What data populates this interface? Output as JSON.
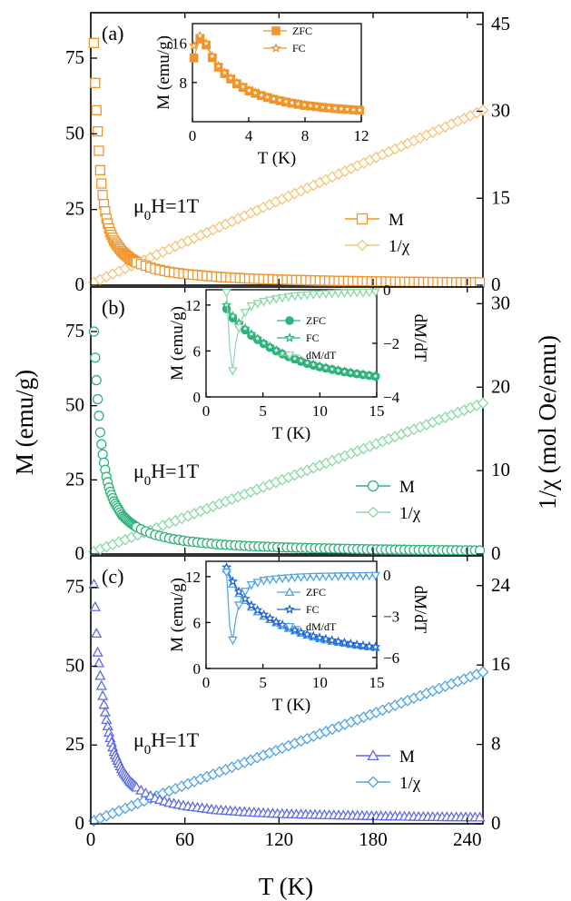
{
  "figure": {
    "left_axis_label": "M (emu/g)",
    "right_axis_label": "1/χ (mol Oe/emu)",
    "x_axis_label": "T (K)",
    "x_ticks": [
      "0",
      "60",
      "120",
      "180",
      "240"
    ]
  },
  "colors": {
    "a": "#F0952A",
    "a_light": "#F7C378",
    "b": "#2EB37A",
    "b_light": "#8AD9A6",
    "c": "#5E6BE6",
    "c_light": "#4FA3E8"
  },
  "chart_data": [
    {
      "type": "scatter",
      "panel": "(a)",
      "annotation": "μ0H=1T",
      "x_range": [
        0,
        250
      ],
      "left_axis": {
        "range": [
          0,
          90
        ],
        "ticks": [
          "0",
          "25",
          "50",
          "75"
        ]
      },
      "right_axis": {
        "range": [
          0,
          47
        ],
        "ticks": [
          "0",
          "15",
          "30",
          "45"
        ]
      },
      "series": [
        {
          "name": "M",
          "marker": "square",
          "axis": "left",
          "x": [
            2,
            3,
            4,
            5,
            6,
            7,
            8,
            10,
            12,
            15,
            20,
            25,
            30,
            40,
            50,
            60,
            80,
            100,
            120,
            150,
            180,
            210,
            240,
            250
          ],
          "y": [
            80,
            63.5,
            54,
            46,
            38,
            32.5,
            28,
            22,
            18,
            14.5,
            11,
            8.8,
            7.3,
            5.5,
            4.4,
            3.7,
            2.8,
            2.2,
            1.85,
            1.5,
            1.25,
            1.08,
            0.95,
            0.9
          ]
        },
        {
          "name": "1/χ",
          "marker": "diamond",
          "axis": "right",
          "x": [
            2,
            50,
            100,
            150,
            200,
            250
          ],
          "y": [
            0.5,
            6.2,
            12.2,
            18.2,
            24.2,
            30.2
          ]
        }
      ],
      "inset": {
        "xlabel": "T (K)",
        "ylabel": "M (emu/g)",
        "x_range": [
          0,
          12
        ],
        "x_ticks": [
          "0",
          "4",
          "8",
          "12"
        ],
        "y_range": [
          0,
          20
        ],
        "y_ticks": [
          "8",
          "16"
        ],
        "series": [
          {
            "name": "ZFC",
            "marker": "filled-square",
            "x": [
              0.1,
              0.3,
              0.5,
              0.7,
              1,
              1.5,
              2,
              3,
              4,
              5,
              6,
              7,
              8,
              9,
              10,
              11,
              12
            ],
            "y": [
              13,
              15,
              16.8,
              17.2,
              15.5,
              12.5,
              10.5,
              8,
              6.3,
              5.2,
              4.4,
              3.8,
              3.3,
              3,
              2.7,
              2.5,
              2.3
            ]
          },
          {
            "name": "FC",
            "marker": "star",
            "x": [
              0.1,
              0.3,
              0.5,
              0.7,
              1,
              1.5,
              2,
              3,
              4,
              5,
              6,
              7,
              8,
              9,
              10,
              11,
              12
            ],
            "y": [
              15.5,
              16.5,
              17.5,
              17.6,
              15.8,
              12.8,
              10.7,
              8.2,
              6.4,
              5.3,
              4.5,
              3.9,
              3.4,
              3.05,
              2.75,
              2.55,
              2.35
            ]
          }
        ]
      }
    },
    {
      "type": "scatter",
      "panel": "(b)",
      "annotation": "μ0H=1T",
      "x_range": [
        0,
        250
      ],
      "left_axis": {
        "range": [
          0,
          90
        ],
        "ticks": [
          "0",
          "25",
          "50",
          "75"
        ]
      },
      "right_axis": {
        "range": [
          0,
          32
        ],
        "ticks": [
          "0",
          "10",
          "20",
          "30"
        ]
      },
      "series": [
        {
          "name": "M",
          "marker": "circle",
          "axis": "left",
          "x": [
            2,
            3,
            4,
            5,
            6,
            7,
            8,
            10,
            12,
            15,
            20,
            25,
            30,
            40,
            50,
            60,
            80,
            100,
            120,
            150,
            180,
            210,
            240,
            250
          ],
          "y": [
            75,
            64,
            55,
            48,
            41,
            36,
            32,
            26,
            21.5,
            17.5,
            13,
            10.6,
            8.8,
            6.6,
            5.3,
            4.4,
            3.3,
            2.7,
            2.3,
            1.9,
            1.6,
            1.4,
            1.25,
            1.2
          ]
        },
        {
          "name": "1/χ",
          "marker": "diamond",
          "axis": "right",
          "x": [
            2,
            50,
            100,
            150,
            200,
            250
          ],
          "y": [
            0.3,
            3.7,
            7.3,
            10.9,
            14.5,
            18.1
          ]
        }
      ],
      "inset": {
        "xlabel": "T (K)",
        "ylabel": "M (emu/g)",
        "y2label": "dM/dT",
        "x_range": [
          0,
          15
        ],
        "x_ticks": [
          "0",
          "5",
          "10",
          "15"
        ],
        "y_range": [
          0,
          14
        ],
        "y_ticks": [
          "0",
          "6",
          "12"
        ],
        "y2_range": [
          -4,
          0
        ],
        "y2_ticks": [
          "0",
          "−2",
          "−4"
        ],
        "series": [
          {
            "name": "ZFC",
            "marker": "filled-circle",
            "x": [
              1.8,
              2,
              2.5,
              3,
              4,
              5,
              6,
              7,
              8,
              9,
              10,
              11,
              12,
              13,
              14,
              15
            ],
            "y": [
              11.5,
              11,
              10,
              9.3,
              8,
              7,
              6.1,
              5.4,
              4.8,
              4.3,
              3.9,
              3.6,
              3.3,
              3.05,
              2.85,
              2.65
            ]
          },
          {
            "name": "FC",
            "marker": "star",
            "x": [
              1.8,
              2,
              2.5,
              3,
              4,
              5,
              6,
              7,
              8,
              9,
              10,
              11,
              12,
              13,
              14,
              15
            ],
            "y": [
              12,
              11.3,
              10.2,
              9.5,
              8.2,
              7.1,
              6.2,
              5.5,
              4.9,
              4.4,
              4,
              3.65,
              3.35,
              3.1,
              2.9,
              2.7
            ]
          },
          {
            "name": "dM/dT",
            "marker": "down-triangle",
            "axis": "right",
            "x": [
              1.8,
              2,
              2.2,
              2.5,
              3,
              3.5,
              4,
              5,
              6,
              7,
              8,
              10,
              12,
              14,
              15
            ],
            "y": [
              -0.1,
              -1.2,
              -3.8,
              -2.2,
              -1.2,
              -0.8,
              -0.6,
              -0.45,
              -0.35,
              -0.28,
              -0.22,
              -0.16,
              -0.12,
              -0.1,
              -0.09
            ]
          }
        ]
      }
    },
    {
      "type": "scatter",
      "panel": "(c)",
      "annotation": "μ0H=1T",
      "x_range": [
        0,
        250
      ],
      "left_axis": {
        "range": [
          0,
          85
        ],
        "ticks": [
          "0",
          "25",
          "50",
          "75"
        ]
      },
      "right_axis": {
        "range": [
          0,
          27
        ],
        "ticks": [
          "0",
          "8",
          "16",
          "24"
        ]
      },
      "series": [
        {
          "name": "M",
          "marker": "triangle",
          "axis": "left",
          "x": [
            2,
            3,
            4,
            5,
            6,
            7,
            8,
            10,
            12,
            15,
            20,
            25,
            30,
            40,
            50,
            60,
            80,
            100,
            120,
            150,
            180,
            210,
            240,
            250
          ],
          "y": [
            76,
            67,
            56,
            52,
            47,
            43,
            39,
            33,
            28,
            22.5,
            17,
            13.5,
            11.2,
            8.3,
            6.7,
            5.7,
            4.4,
            3.7,
            3.2,
            2.8,
            2.5,
            2.25,
            2.1,
            2.05
          ]
        },
        {
          "name": "1/χ",
          "marker": "diamond",
          "axis": "right",
          "x": [
            2,
            50,
            100,
            150,
            200,
            250
          ],
          "y": [
            0.3,
            3.3,
            6.3,
            9.3,
            12.3,
            15.3
          ]
        }
      ],
      "inset": {
        "xlabel": "T (K)",
        "ylabel": "M (emu/g)",
        "y2label": "dM/dT",
        "x_range": [
          0,
          15
        ],
        "x_ticks": [
          "0",
          "5",
          "10",
          "15"
        ],
        "y_range": [
          0,
          14
        ],
        "y_ticks": [
          "0",
          "6",
          "12"
        ],
        "y2_range": [
          -6.8,
          1
        ],
        "y2_ticks": [
          "0",
          "−3",
          "−6"
        ],
        "series": [
          {
            "name": "ZFC",
            "marker": "triangle",
            "x": [
              1.8,
              2,
              2.5,
              3,
              4,
              5,
              6,
              7,
              8,
              9,
              10,
              11,
              12,
              13,
              14,
              15
            ],
            "y": [
              13,
              12,
              10.6,
              9.6,
              8,
              6.9,
              6.1,
              5.4,
              4.8,
              4.3,
              3.9,
              3.6,
              3.35,
              3.1,
              2.9,
              2.75
            ]
          },
          {
            "name": "FC",
            "marker": "star",
            "x": [
              1.8,
              2,
              2.5,
              3,
              4,
              5,
              6,
              7,
              8,
              9,
              10,
              11,
              12,
              13,
              14,
              15
            ],
            "y": [
              13.2,
              12.4,
              10.9,
              9.8,
              8.2,
              7.1,
              6.2,
              5.5,
              4.9,
              4.4,
              4,
              3.7,
              3.4,
              3.15,
              2.95,
              2.8
            ]
          },
          {
            "name": "dM/dT",
            "marker": "down-triangle",
            "axis": "right",
            "x": [
              1.8,
              2,
              2.2,
              2.5,
              3,
              3.5,
              4,
              5,
              6,
              7,
              8,
              10,
              12,
              14,
              15
            ],
            "y": [
              0.2,
              -2.5,
              -5.8,
              -3.6,
              -1.8,
              -1.1,
              -0.7,
              -0.4,
              -0.3,
              -0.22,
              -0.16,
              -0.1,
              -0.07,
              -0.05,
              -0.04
            ]
          }
        ]
      }
    }
  ]
}
